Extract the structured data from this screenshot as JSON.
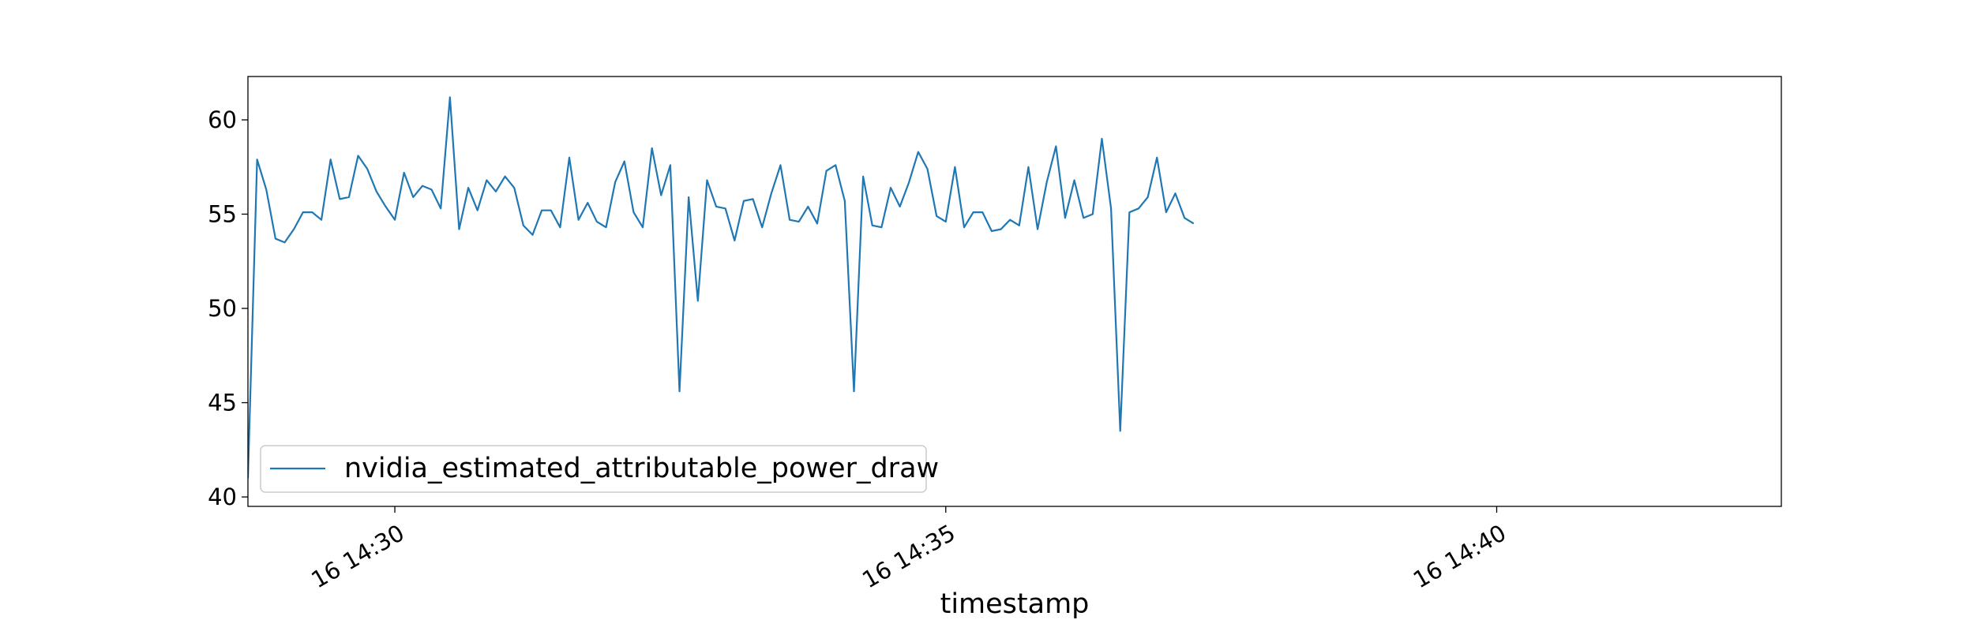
{
  "chart_data": {
    "type": "line",
    "title": "",
    "xlabel": "timestamp",
    "ylabel": "",
    "x_start": "16 14:28:40",
    "x_step_seconds": 5,
    "x_ticks": [
      "16 14:30",
      "16 14:35",
      "16 14:40"
    ],
    "y_ticks": [
      40,
      45,
      50,
      55,
      60
    ],
    "ylim": [
      39.5,
      62.3
    ],
    "xlim": [
      "16 14:28:40",
      "16 14:42:35"
    ],
    "grid": false,
    "legend_position": "lower-left",
    "series": [
      {
        "name": "nvidia_estimated_attributable_power_draw",
        "color": "#1f77b4",
        "values": [
          41.0,
          57.9,
          56.3,
          53.7,
          53.5,
          54.2,
          55.1,
          55.1,
          54.7,
          57.9,
          55.8,
          55.9,
          58.1,
          57.4,
          56.2,
          55.4,
          54.7,
          57.2,
          55.9,
          56.5,
          56.3,
          55.3,
          61.2,
          54.2,
          56.4,
          55.2,
          56.8,
          56.2,
          57.0,
          56.4,
          54.4,
          53.9,
          55.2,
          55.2,
          54.3,
          58.0,
          54.7,
          55.6,
          54.6,
          54.3,
          56.7,
          57.8,
          55.1,
          54.3,
          58.5,
          56.0,
          57.6,
          45.6,
          55.9,
          50.4,
          56.8,
          55.4,
          55.3,
          53.6,
          55.7,
          55.8,
          54.3,
          56.1,
          57.6,
          54.7,
          54.6,
          55.4,
          54.5,
          57.3,
          57.6,
          55.7,
          45.6,
          57.0,
          54.4,
          54.3,
          56.4,
          55.4,
          56.7,
          58.3,
          57.4,
          54.9,
          54.6,
          57.5,
          54.3,
          55.1,
          55.1,
          54.1,
          54.2,
          54.7,
          54.4,
          57.5,
          54.2,
          56.7,
          58.6,
          54.8,
          56.8,
          54.8,
          55.0,
          59.0,
          55.3,
          43.5,
          55.1,
          55.3,
          55.9,
          58.0,
          55.1,
          56.1,
          54.8,
          54.5
        ]
      }
    ]
  }
}
